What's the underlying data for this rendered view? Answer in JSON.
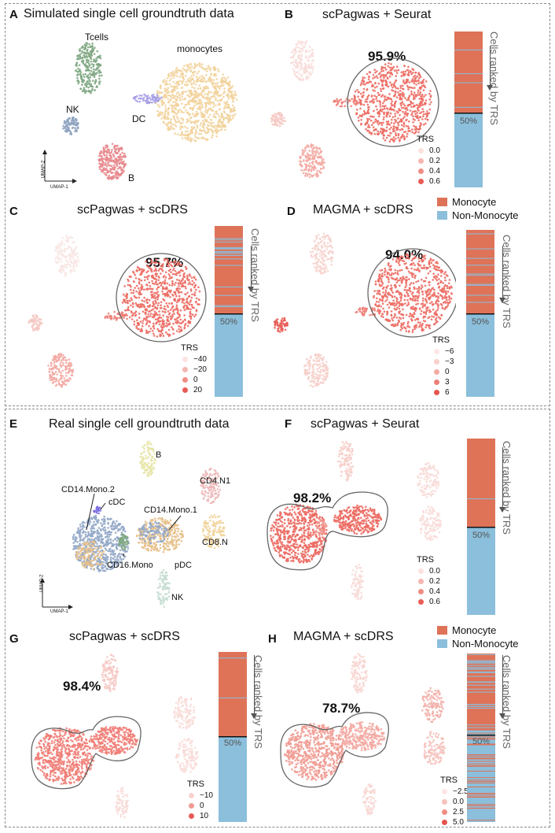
{
  "colors": {
    "monocyte": "#de7358",
    "non_monocyte": "#8bbfdc",
    "tcell": "#80a783",
    "nk": "#8ea3c0",
    "dc": "#a49ce6",
    "b": "#e88a8e",
    "mono_cluster": "#f2d39c"
  },
  "panels": {
    "A": {
      "letter": "A",
      "title": "Simulated single cell groundtruth data",
      "clusters": {
        "tcells": "Tcells",
        "monocytes": "monocytes",
        "nk": "NK",
        "dc": "DC",
        "b": "B"
      },
      "axes": {
        "y": "UMAP-2",
        "x": "UMAP-1"
      }
    },
    "B": {
      "letter": "B",
      "title": "scPagwas + Seurat",
      "pct": "95.9%",
      "legend_title": "TRS",
      "legend": [
        "0.0",
        "0.2",
        "0.4",
        "0.6"
      ],
      "bar_half": "50%",
      "bar_label": "Cells ranked by TRS"
    },
    "C": {
      "letter": "C",
      "title": "scPagwas + scDRS",
      "pct": "95.7%",
      "legend_title": "TRS",
      "legend": [
        "−40",
        "−20",
        "0",
        "20"
      ],
      "bar_half": "50%",
      "bar_label": "Cells ranked by TRS"
    },
    "D": {
      "letter": "D",
      "title": "MAGMA + scDRS",
      "pct": "94.0%",
      "legend_title": "TRS",
      "legend": [
        "−6",
        "−3",
        "0",
        "3",
        "6"
      ],
      "bar_half": "50%",
      "bar_label": "Cells ranked by TRS"
    },
    "E": {
      "letter": "E",
      "title": "Real single cell groundtruth data",
      "clusters": {
        "b": "B",
        "cd4": "CD4.N1",
        "mono2": "CD14.Mono.2",
        "cdc": "cDC",
        "mono1": "CD14.Mono.1",
        "cd8": "CD8.N",
        "cd16": "CD16.Mono",
        "pdc": "pDC",
        "nk": "NK"
      },
      "axes": {
        "y": "UMAP-2",
        "x": "UMAP-1"
      }
    },
    "F": {
      "letter": "F",
      "title": "scPagwas + Seurat",
      "pct": "98.2%",
      "legend_title": "TRS",
      "legend": [
        "0.0",
        "0.2",
        "0.4",
        "0.6"
      ],
      "bar_half": "50%",
      "bar_label": "Cells ranked by TRS"
    },
    "G": {
      "letter": "G",
      "title": "scPagwas + scDRS",
      "pct": "98.4%",
      "legend_title": "TRS",
      "legend": [
        "−10",
        "0",
        "10"
      ],
      "bar_half": "50%",
      "bar_label": "Cells ranked by TRS"
    },
    "H": {
      "letter": "H",
      "title": "MAGMA + scDRS",
      "pct": "78.7%",
      "legend_title": "TRS",
      "legend": [
        "−2.5",
        "0.0",
        "2.5",
        "5.0"
      ],
      "bar_half": "50%",
      "bar_label": "Cells ranked by TRS"
    }
  },
  "key": {
    "monocyte": "Monocyte",
    "non_monocyte": "Non-Monocyte"
  }
}
